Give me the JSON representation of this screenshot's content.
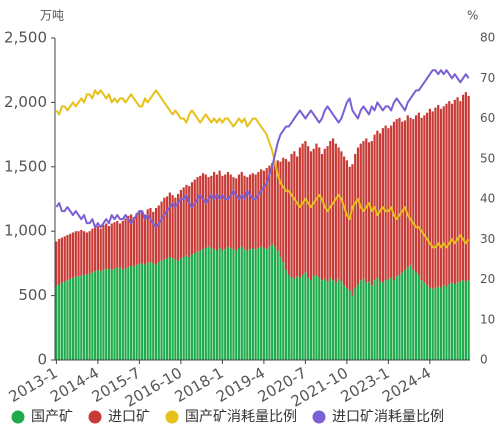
{
  "chart_data": {
    "type": "bar",
    "y_unit": "万吨",
    "y2_unit": "%",
    "categories": [
      "2013-1",
      null,
      null,
      null,
      null,
      null,
      null,
      null,
      null,
      null,
      null,
      null,
      null,
      null,
      null,
      "2014-4",
      null,
      null,
      null,
      null,
      null,
      null,
      null,
      null,
      null,
      null,
      null,
      null,
      null,
      null,
      "2015-7",
      null,
      null,
      null,
      null,
      null,
      null,
      null,
      null,
      null,
      null,
      null,
      null,
      null,
      null,
      "2016-10",
      null,
      null,
      null,
      null,
      null,
      null,
      null,
      null,
      null,
      null,
      null,
      null,
      null,
      null,
      "2018-1",
      null,
      null,
      null,
      null,
      null,
      null,
      null,
      null,
      null,
      null,
      null,
      null,
      null,
      null,
      "2019-4",
      null,
      null,
      null,
      null,
      null,
      null,
      null,
      null,
      null,
      null,
      null,
      null,
      null,
      null,
      "2020-7",
      null,
      null,
      null,
      null,
      null,
      null,
      null,
      null,
      null,
      null,
      null,
      null,
      null,
      null,
      "2021-10",
      null,
      null,
      null,
      null,
      null,
      null,
      null,
      null,
      null,
      null,
      null,
      null,
      null,
      null,
      "2023-1",
      null,
      null,
      null,
      null,
      null,
      null,
      null,
      null,
      null,
      null,
      null,
      null,
      null,
      null,
      "2024-4",
      null,
      null,
      null,
      null,
      null,
      null,
      null,
      null,
      null,
      null,
      null,
      null,
      null,
      null
    ],
    "series": [
      {
        "name": "国产矿",
        "color": "#1fab4b",
        "type": "bar",
        "values": [
          575,
          590,
          600,
          610,
          620,
          630,
          640,
          645,
          650,
          655,
          660,
          665,
          670,
          680,
          690,
          700,
          690,
          700,
          705,
          710,
          700,
          710,
          715,
          720,
          700,
          710,
          720,
          730,
          725,
          740,
          745,
          750,
          740,
          755,
          760,
          750,
          740,
          760,
          770,
          780,
          790,
          800,
          790,
          780,
          770,
          790,
          800,
          810,
          800,
          820,
          830,
          840,
          850,
          860,
          870,
          880,
          870,
          860,
          850,
          870,
          850,
          860,
          880,
          870,
          860,
          850,
          870,
          880,
          860,
          850,
          860,
          870,
          860,
          870,
          880,
          870,
          860,
          880,
          900,
          880,
          850,
          800,
          760,
          700,
          660,
          640,
          630,
          650,
          640,
          660,
          680,
          640,
          620,
          650,
          660,
          640,
          620,
          630,
          610,
          640,
          620,
          600,
          630,
          610,
          580,
          560,
          540,
          500,
          560,
          590,
          620,
          630,
          600,
          610,
          580,
          620,
          640,
          610,
          600,
          620,
          630,
          640,
          620,
          650,
          660,
          680,
          700,
          720,
          740,
          700,
          680,
          660,
          620,
          600,
          580,
          560,
          550,
          560,
          570,
          560,
          580,
          570,
          590,
          600,
          590,
          600,
          610,
          620,
          610,
          620
        ]
      },
      {
        "name": "进口矿",
        "color": "#c83a35",
        "type": "bar",
        "values": [
          345,
          350,
          350,
          350,
          350,
          350,
          350,
          355,
          350,
          355,
          340,
          325,
          330,
          340,
          340,
          340,
          330,
          350,
          355,
          330,
          360,
          360,
          365,
          340,
          380,
          390,
          400,
          400,
          385,
          400,
          405,
          410,
          390,
          415,
          420,
          400,
          440,
          440,
          460,
          480,
          480,
          500,
          490,
          480,
          520,
          530,
          540,
          550,
          550,
          560,
          570,
          580,
          580,
          590,
          570,
          540,
          560,
          600,
          590,
          600,
          580,
          580,
          580,
          570,
          560,
          560,
          570,
          580,
          570,
          570,
          580,
          580,
          580,
          590,
          600,
          600,
          630,
          630,
          630,
          640,
          700,
          740,
          810,
          860,
          880,
          960,
          990,
          930,
          1010,
          1020,
          1020,
          1020,
          1000,
          990,
          1020,
          1010,
          980,
          1010,
          1050,
          1060,
          1100,
          1080,
          1020,
          1010,
          1000,
          990,
          960,
          1020,
          1040,
          1060,
          1060,
          1070,
          1120,
          1080,
          1120,
          1130,
          1140,
          1150,
          1200,
          1200,
          1170,
          1180,
          1230,
          1220,
          1220,
          1170,
          1160,
          1180,
          1140,
          1170,
          1220,
          1260,
          1260,
          1300,
          1340,
          1390,
          1380,
          1400,
          1410,
          1390,
          1390,
          1420,
          1420,
          1390,
          1430,
          1440,
          1400,
          1440,
          1470,
          1430
        ]
      },
      {
        "name": "国产矿消耗量比例",
        "color": "#e7c01b",
        "type": "line",
        "axis": "y2",
        "values": [
          62,
          61,
          63,
          63,
          62,
          63,
          64,
          63,
          64,
          65,
          64,
          66,
          66,
          65,
          67,
          66,
          67,
          66,
          65,
          66,
          64,
          65,
          64,
          65,
          65,
          64,
          65,
          66,
          65,
          64,
          63,
          63,
          65,
          64,
          65,
          66,
          67,
          66,
          65,
          64,
          63,
          62,
          61,
          62,
          61,
          60,
          60,
          59,
          61,
          62,
          61,
          60,
          59,
          60,
          61,
          60,
          59,
          60,
          59,
          60,
          59,
          60,
          60,
          59,
          58,
          59,
          60,
          59,
          60,
          58,
          59,
          60,
          60,
          59,
          58,
          57,
          56,
          54,
          52,
          49,
          46,
          44,
          43,
          42,
          42,
          41,
          40,
          39,
          38,
          39,
          40,
          39,
          38,
          39,
          40,
          41,
          40,
          38,
          37,
          38,
          39,
          40,
          41,
          40,
          38,
          36,
          35,
          38,
          39,
          40,
          38,
          37,
          38,
          39,
          37,
          38,
          36,
          37,
          38,
          37,
          37,
          38,
          36,
          35,
          36,
          37,
          38,
          36,
          35,
          34,
          33,
          33,
          32,
          31,
          30,
          29,
          28,
          28,
          29,
          28,
          29,
          28,
          29,
          30,
          29,
          30,
          31,
          30,
          29,
          30
        ]
      },
      {
        "name": "进口矿消耗量比例",
        "color": "#7b5fd4",
        "type": "line",
        "axis": "y2",
        "values": [
          38,
          39,
          37,
          37,
          38,
          37,
          36,
          37,
          36,
          35,
          36,
          34,
          34,
          35,
          33,
          34,
          33,
          34,
          35,
          34,
          36,
          35,
          36,
          35,
          35,
          36,
          35,
          34,
          35,
          36,
          37,
          37,
          35,
          36,
          35,
          34,
          33,
          34,
          35,
          36,
          37,
          38,
          39,
          38,
          39,
          40,
          40,
          41,
          39,
          38,
          39,
          40,
          41,
          40,
          39,
          40,
          41,
          40,
          41,
          40,
          41,
          40,
          40,
          41,
          42,
          41,
          40,
          41,
          40,
          42,
          41,
          40,
          40,
          41,
          42,
          43,
          44,
          46,
          48,
          51,
          54,
          56,
          57,
          58,
          58,
          59,
          60,
          61,
          62,
          61,
          60,
          61,
          62,
          61,
          60,
          59,
          60,
          62,
          63,
          62,
          61,
          60,
          59,
          60,
          62,
          64,
          65,
          62,
          61,
          60,
          62,
          63,
          62,
          61,
          63,
          62,
          64,
          63,
          62,
          63,
          63,
          62,
          64,
          65,
          64,
          63,
          62,
          64,
          65,
          66,
          67,
          67,
          68,
          69,
          70,
          71,
          72,
          72,
          71,
          72,
          71,
          72,
          71,
          70,
          71,
          70,
          69,
          70,
          71,
          70
        ]
      }
    ],
    "ylim": [
      0,
      2500
    ],
    "yticks": [
      0,
      {
        "value": 500,
        "label": "500"
      },
      {
        "value": 1000,
        "label": "1,000"
      },
      {
        "value": 1500,
        "label": "1,500"
      },
      {
        "value": 2000,
        "label": "2,000"
      },
      {
        "value": 2500,
        "label": "2,500"
      }
    ],
    "y2lim": [
      0,
      80
    ],
    "y2ticks": [
      0,
      10,
      20,
      30,
      40,
      50,
      60,
      70,
      80
    ],
    "legend": "bottom"
  }
}
